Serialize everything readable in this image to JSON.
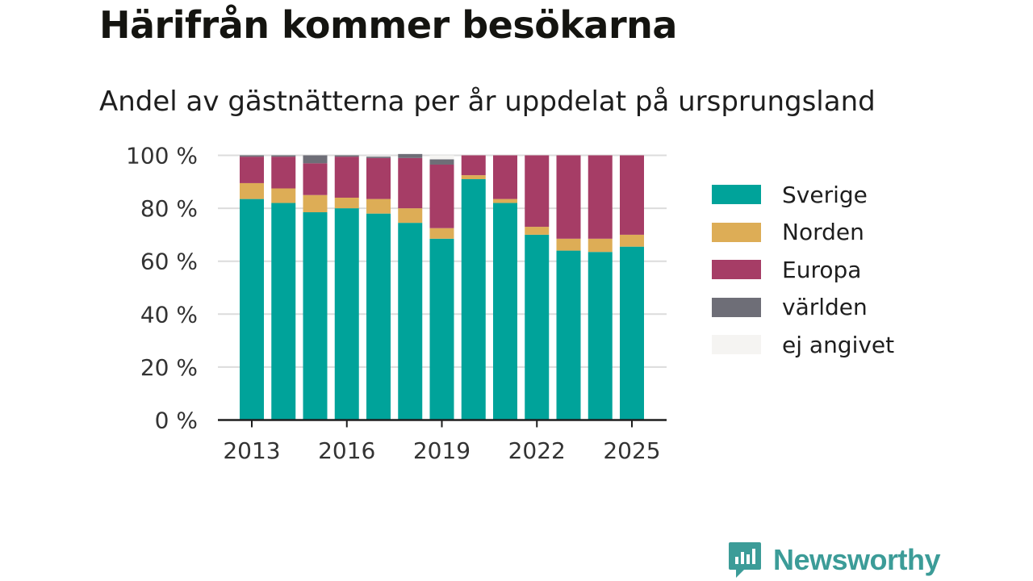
{
  "page": {
    "title": "Härifrån kommer besökarna",
    "subtitle": "Andel av gästnätterna per år uppdelat på ursprungsland",
    "brand": "Newsworthy"
  },
  "colors": {
    "Sverige": "#00a39a",
    "Norden": "#ddad56",
    "Europa": "#a63d66",
    "världen": "#6e6e77",
    "ej angivet": "#f5f4f2",
    "grid": "#dcdcdc",
    "axis": "#1e1e1e",
    "brand": "#3c9c98"
  },
  "chart_data": {
    "type": "bar",
    "stacked": true,
    "categories": [
      "2013",
      "2014",
      "2015",
      "2016",
      "2017",
      "2018",
      "2019",
      "2020",
      "2021",
      "2022",
      "2023",
      "2024",
      "2025"
    ],
    "series": [
      {
        "name": "Sverige",
        "values": [
          83.5,
          82,
          78.5,
          80,
          78,
          74.5,
          68.5,
          91,
          82,
          70,
          64,
          63.5,
          65.5
        ]
      },
      {
        "name": "Norden",
        "values": [
          6,
          5.5,
          6.5,
          4,
          5.5,
          5.5,
          4,
          1.5,
          1.5,
          3,
          4.5,
          5,
          4.5
        ]
      },
      {
        "name": "Europa",
        "values": [
          10,
          12,
          12,
          15.5,
          15.5,
          19,
          24,
          7.5,
          16.5,
          27,
          31.5,
          31.5,
          30
        ]
      },
      {
        "name": "världen",
        "values": [
          0.5,
          0.5,
          3,
          0.5,
          0.5,
          1.5,
          2,
          0,
          0,
          0,
          0,
          0,
          0
        ]
      },
      {
        "name": "ej angivet",
        "values": [
          0,
          0,
          0,
          0,
          0,
          0,
          1.5,
          0,
          0,
          0,
          0,
          0,
          0
        ]
      }
    ],
    "x_tick_labels": [
      "2013",
      "2016",
      "2019",
      "2022",
      "2025"
    ],
    "y_tick_labels": [
      "0 %",
      "20 %",
      "40 %",
      "60 %",
      "80 %",
      "100 %"
    ],
    "y_ticks": [
      0,
      20,
      40,
      60,
      80,
      100
    ],
    "ylim": [
      0,
      100
    ],
    "grid": true,
    "legend_position": "right",
    "xlabel": "",
    "ylabel": ""
  }
}
